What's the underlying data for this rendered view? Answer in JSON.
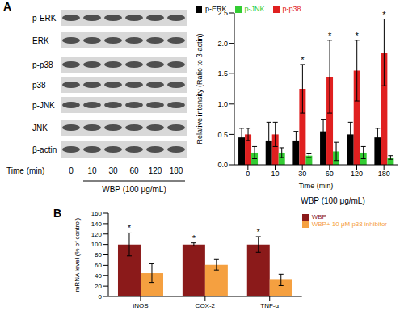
{
  "panel_labels": [
    "A",
    "B"
  ],
  "blot": {
    "rows": [
      "p-ERK",
      "ERK",
      "p-p38",
      "p38",
      "p-JNK",
      "JNK",
      "β-actin"
    ],
    "time_label": "Time (min)",
    "times": [
      "0",
      "10",
      "30",
      "60",
      "120",
      "180"
    ],
    "treatment": "WBP (100 μg/mL)"
  },
  "chart_data": [
    {
      "type": "bar",
      "x_label": "Time (min)",
      "y_label": "Relative intensity (Ratio to β-actin)",
      "annotation": "WBP (100 μg/mL)",
      "categories": [
        "0",
        "10",
        "30",
        "60",
        "120",
        "180"
      ],
      "series": [
        {
          "name": "p-ERK",
          "color": "#000000",
          "values": [
            0.45,
            0.4,
            0.4,
            0.55,
            0.5,
            0.45
          ],
          "errors": [
            0.15,
            0.3,
            0.15,
            0.2,
            0.2,
            0.15
          ]
        },
        {
          "name": "p-p38",
          "color": "#e02020",
          "values": [
            0.5,
            0.5,
            1.25,
            1.45,
            1.55,
            1.85
          ],
          "errors": [
            0.1,
            0.2,
            0.4,
            0.6,
            0.5,
            0.55
          ],
          "annotations": [
            null,
            null,
            "*",
            "*",
            "*",
            "*"
          ]
        },
        {
          "name": "p-JNK",
          "color": "#33cc33",
          "values": [
            0.2,
            0.2,
            0.15,
            0.22,
            0.2,
            0.12
          ],
          "errors": [
            0.1,
            0.08,
            0.03,
            0.15,
            0.1,
            0.03
          ]
        }
      ],
      "ylim": [
        0,
        2.5
      ],
      "yticks": [
        {
          "value": 0,
          "label": "0.0"
        },
        {
          "value": 0.5,
          "label": "0.5"
        },
        {
          "value": 1,
          "label": "1.0"
        },
        {
          "value": 1.5,
          "label": "1.5"
        },
        {
          "value": 2,
          "label": "2.0"
        },
        {
          "value": 2.5,
          "label": "2.5"
        }
      ],
      "legend": "upper left",
      "grid": false
    },
    {
      "type": "bar",
      "y_label": "mRNA level (% of control)",
      "categories": [
        "iNOS",
        "COX-2",
        "TNF-α"
      ],
      "series": [
        {
          "name": "WBP",
          "color": "#8b1a1a",
          "values": [
            100,
            100,
            100
          ],
          "errors": [
            22,
            3,
            15
          ],
          "annotations": [
            "*",
            "*",
            "*"
          ]
        },
        {
          "name": "WBP+ 10 μM p38 inhibitor",
          "color": "#f5a040",
          "values": [
            45,
            61,
            32
          ],
          "errors": [
            18,
            10,
            11
          ]
        }
      ],
      "ylim": [
        0,
        160
      ],
      "yticks": [
        0,
        20,
        40,
        60,
        80,
        100,
        120,
        140,
        160
      ],
      "legend": "upper right",
      "grid": false
    }
  ]
}
